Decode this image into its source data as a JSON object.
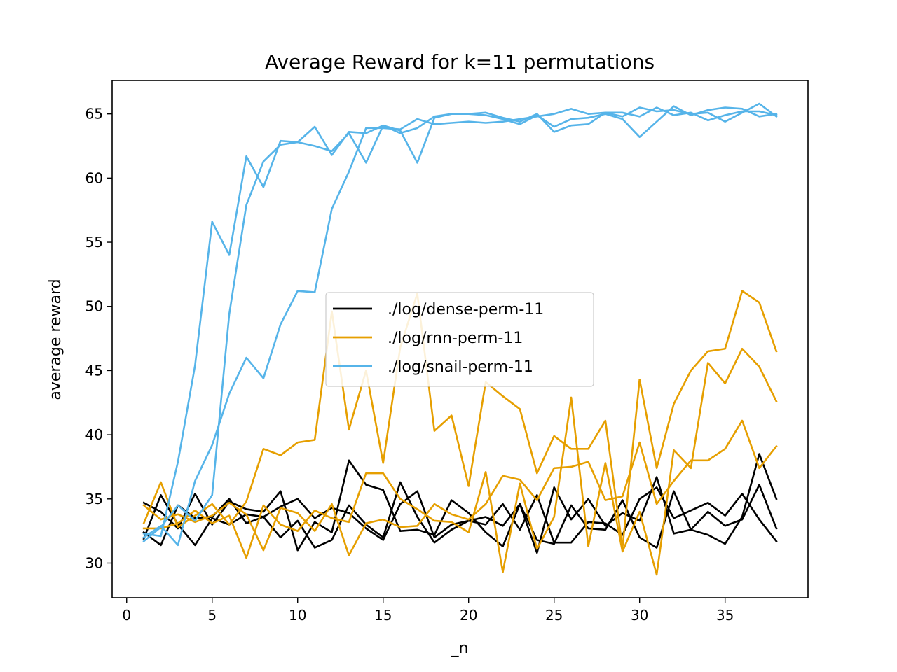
{
  "chart_data": {
    "type": "line",
    "title": "Average Reward for k=11 permutations",
    "xlabel": "_n",
    "ylabel": "average reward",
    "xlim": [
      -0.85,
      39.85
    ],
    "ylim": [
      27.3,
      67.6
    ],
    "xticks": [
      0,
      5,
      10,
      15,
      20,
      25,
      30,
      35
    ],
    "yticks": [
      30,
      35,
      40,
      45,
      50,
      55,
      60,
      65
    ],
    "grid": false,
    "legend_position": "center",
    "x": [
      1,
      2,
      3,
      4,
      5,
      6,
      7,
      8,
      9,
      10,
      11,
      12,
      13,
      14,
      15,
      16,
      17,
      18,
      19,
      20,
      21,
      22,
      23,
      24,
      25,
      26,
      27,
      28,
      29,
      30,
      31,
      32,
      33,
      34,
      35,
      36,
      37,
      38
    ],
    "groups": [
      {
        "label": "./log/dense-perm-11",
        "color": "#000000",
        "runs": [
          [
            34.7,
            34.0,
            32.7,
            35.4,
            33.0,
            34.8,
            34.2,
            34.0,
            35.6,
            31.0,
            33.2,
            32.4,
            38.0,
            36.1,
            35.7,
            32.5,
            32.6,
            32.2,
            34.9,
            33.9,
            32.4,
            31.3,
            34.6,
            30.8,
            35.9,
            33.4,
            35.0,
            32.9,
            33.9,
            33.3,
            36.7,
            32.3,
            32.6,
            32.2,
            31.5,
            33.6,
            38.5,
            35.0
          ],
          [
            31.9,
            35.3,
            33.0,
            31.4,
            33.5,
            33.0,
            33.8,
            33.6,
            32.0,
            33.3,
            31.2,
            31.8,
            34.5,
            33.0,
            32.0,
            36.3,
            33.6,
            31.6,
            32.6,
            33.3,
            33.6,
            32.9,
            34.6,
            31.8,
            31.5,
            34.5,
            32.7,
            32.6,
            34.9,
            32.0,
            31.2,
            35.6,
            32.6,
            34.0,
            32.9,
            33.4,
            36.1,
            32.7
          ],
          [
            32.4,
            31.4,
            34.5,
            33.5,
            33.6,
            35.0,
            33.1,
            33.6,
            34.4,
            35.0,
            33.5,
            34.3,
            33.9,
            32.7,
            31.8,
            34.6,
            35.6,
            32.0,
            33.0,
            33.3,
            33.0,
            34.6,
            32.6,
            35.3,
            31.6,
            31.6,
            33.2,
            33.1,
            32.2,
            35.0,
            35.9,
            33.5,
            34.1,
            34.7,
            33.7,
            35.4,
            33.4,
            31.7
          ]
        ]
      },
      {
        "label": "./log/rnn-perm-11",
        "color": "#E69F00",
        "runs": [
          [
            34.5,
            33.4,
            33.8,
            33.2,
            33.7,
            34.7,
            33.8,
            31.0,
            34.3,
            33.9,
            32.5,
            34.6,
            30.6,
            33.1,
            33.4,
            32.8,
            32.9,
            34.6,
            33.8,
            33.4,
            34.6,
            36.8,
            36.5,
            34.9,
            37.4,
            37.5,
            37.9,
            34.9,
            35.2,
            39.4,
            34.6,
            36.4,
            38.0,
            38.0,
            38.9,
            41.1,
            37.4,
            39.1
          ],
          [
            33.1,
            36.3,
            32.8,
            33.7,
            34.6,
            33.0,
            34.8,
            38.9,
            38.4,
            39.4,
            39.6,
            49.6,
            40.4,
            45.0,
            37.8,
            46.8,
            51.0,
            40.3,
            41.5,
            36.0,
            44.1,
            43.0,
            42.0,
            37.0,
            39.9,
            38.9,
            38.9,
            41.1,
            31.2,
            44.3,
            37.4,
            42.4,
            45.0,
            46.5,
            46.7,
            51.2,
            50.3,
            46.5
          ],
          [
            32.7,
            32.7,
            33.1,
            34.1,
            33.1,
            33.7,
            30.4,
            34.5,
            33.0,
            32.5,
            34.1,
            33.5,
            33.2,
            37.0,
            37.0,
            35.0,
            34.2,
            33.3,
            33.2,
            32.4,
            37.1,
            29.3,
            36.2,
            31.1,
            33.6,
            42.9,
            31.3,
            37.8,
            30.9,
            34.0,
            29.1,
            38.8,
            37.4,
            45.6,
            44.0,
            46.7,
            45.3,
            42.6
          ]
        ]
      },
      {
        "label": "./log/snail-perm-11",
        "color": "#56B4E9",
        "runs": [
          [
            32.3,
            32.1,
            37.9,
            45.4,
            56.6,
            54.0,
            61.7,
            59.3,
            62.9,
            62.8,
            62.5,
            62.1,
            63.5,
            61.2,
            64.1,
            63.7,
            61.2,
            64.7,
            65.0,
            65.0,
            65.1,
            64.7,
            64.4,
            65.0,
            63.6,
            64.1,
            64.2,
            65.1,
            64.8,
            65.5,
            65.2,
            65.3,
            65.0,
            65.1,
            64.4,
            65.1,
            65.8,
            64.8
          ],
          [
            31.7,
            32.8,
            34.5,
            33.3,
            35.3,
            49.4,
            57.9,
            61.3,
            62.6,
            62.8,
            64.0,
            61.8,
            63.6,
            63.5,
            64.1,
            63.5,
            63.9,
            64.8,
            65.0,
            65.0,
            64.9,
            64.6,
            64.2,
            64.9,
            64.0,
            64.6,
            64.7,
            65.0,
            64.6,
            63.2,
            64.4,
            65.6,
            64.9,
            65.3,
            65.5,
            65.4,
            64.8,
            65.0
          ],
          [
            32.0,
            32.9,
            31.4,
            36.4,
            39.2,
            43.2,
            46.0,
            44.4,
            48.6,
            51.2,
            51.1,
            57.6,
            60.5,
            63.9,
            63.9,
            63.8,
            64.6,
            64.2,
            64.3,
            64.4,
            64.3,
            64.4,
            64.6,
            64.8,
            65.0,
            65.4,
            65.0,
            65.1,
            65.1,
            64.8,
            65.5,
            64.9,
            65.1,
            64.5,
            64.9,
            65.2,
            65.2,
            64.9
          ]
        ]
      }
    ]
  }
}
